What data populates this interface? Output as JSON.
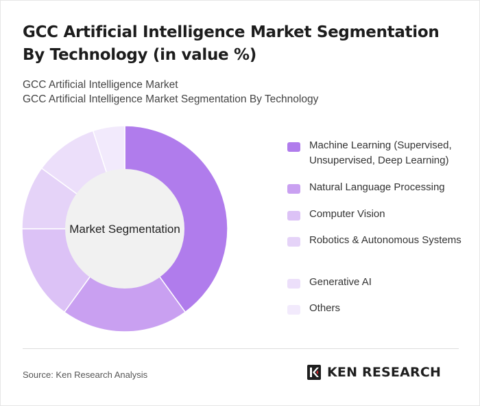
{
  "header": {
    "title": "GCC Artificial Intelligence Market Segmentation By Technology (in value %)",
    "subtitle_1": "GCC Artificial Intelligence Market",
    "subtitle_2": "GCC Artificial Intelligence Market Segmentation By Technology"
  },
  "chart_data": {
    "type": "pie",
    "variant": "donut",
    "center_label": "Market Segmentation",
    "categories": [
      "Machine Learning (Supervised, Unsupervised, Deep Learning)",
      "Natural Language Processing",
      "Computer Vision",
      "Robotics & Autonomous Systems",
      "Generative AI",
      "Others"
    ],
    "values": [
      40,
      20,
      15,
      10,
      10,
      5
    ],
    "colors": [
      "#b07cec",
      "#c9a0f1",
      "#dcc2f6",
      "#e5d3f8",
      "#ecdffa",
      "#f2eafc"
    ],
    "legend_position": "right"
  },
  "footer": {
    "source": "Source: Ken Research Analysis",
    "logo_text": "KEN RESEARCH",
    "logo_icon": "ken-research-k-icon"
  }
}
